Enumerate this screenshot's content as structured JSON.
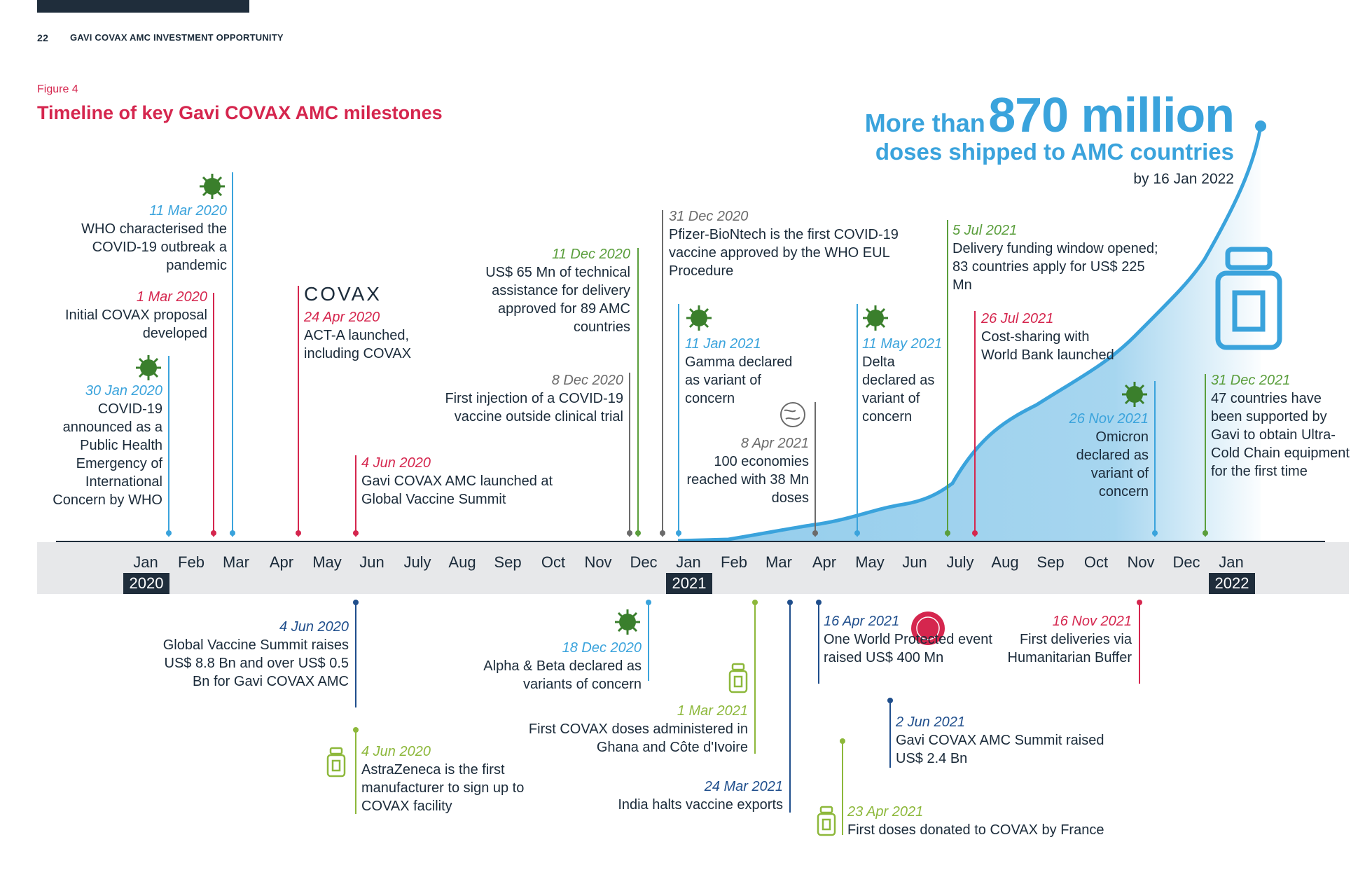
{
  "header": {
    "page_number": "22",
    "title": "GAVI COVAX AMC INVESTMENT OPPORTUNITY"
  },
  "figure": {
    "label": "Figure 4",
    "title": "Timeline of key Gavi COVAX AMC milestones"
  },
  "headline": {
    "prefix": "More than",
    "big": "870 million",
    "line2": "doses shipped to AMC countries",
    "line3": "by 16 Jan 2022"
  },
  "colors": {
    "red": "#d5264e",
    "blue": "#3aa3dc",
    "green": "#5a9e3c",
    "lightgreen": "#8db83b",
    "navy": "#1f4e8c",
    "grey": "#6b6b6b",
    "dark": "#1f2d3b"
  },
  "axis": {
    "months": [
      "Jan",
      "Feb",
      "Mar",
      "Apr",
      "May",
      "Jun",
      "July",
      "Aug",
      "Sep",
      "Oct",
      "Nov",
      "Dec",
      "Jan",
      "Feb",
      "Mar",
      "Apr",
      "May",
      "Jun",
      "July",
      "Aug",
      "Sep",
      "Oct",
      "Nov",
      "Dec",
      "Jan"
    ],
    "years": [
      "2020",
      "2021",
      "2022"
    ]
  },
  "logo_text": "COVAX",
  "badge_text": "ONE WORLD PROTECTED",
  "events_top": [
    {
      "date": "11 Mar 2020",
      "text": "WHO characterised the COVID-19 outbreak a pandemic"
    },
    {
      "date": "1 Mar 2020",
      "text": "Initial COVAX proposal developed"
    },
    {
      "date": "30 Jan 2020",
      "text": "COVID-19 announced as a Public Health Emergency of International Concern by WHO"
    },
    {
      "date": "24 Apr 2020",
      "text": "ACT-A launched, including COVAX"
    },
    {
      "date": "4 Jun 2020",
      "text": "Gavi COVAX AMC launched at Global Vaccine Summit"
    },
    {
      "date": "11 Dec 2020",
      "text": "US$ 65 Mn of technical assistance for delivery approved for 89 AMC countries"
    },
    {
      "date": "8 Dec 2020",
      "text": "First injection of a COVID-19 vaccine outside clinical trial"
    },
    {
      "date": "31 Dec 2020",
      "text": "Pfizer-BioNtech is the first COVID-19 vaccine approved by the WHO EUL Procedure"
    },
    {
      "date": "11 Jan 2021",
      "text": "Gamma declared as variant of concern"
    },
    {
      "date": "8 Apr 2021",
      "text": "100 economies reached with 38 Mn doses"
    },
    {
      "date": "11 May 2021",
      "text": "Delta declared as variant of concern"
    },
    {
      "date": "5 Jul 2021",
      "text": "Delivery funding window opened; 83 countries apply for US$ 225 Mn"
    },
    {
      "date": "26 Jul 2021",
      "text": "Cost-sharing with World Bank launched"
    },
    {
      "date": "26 Nov 2021",
      "text": "Omicron declared as variant of concern"
    },
    {
      "date": "31 Dec 2021",
      "text": "47 countries have been supported by Gavi to obtain Ultra-Cold Chain equipment for the first time"
    }
  ],
  "events_bottom": [
    {
      "date": "4 Jun 2020",
      "text": "Global Vaccine Summit raises US$ 8.8 Bn and over US$ 0.5 Bn for Gavi COVAX AMC"
    },
    {
      "date": "4 Jun 2020",
      "text": "AstraZeneca is the first manufacturer to sign up to COVAX facility"
    },
    {
      "date": "18 Dec 2020",
      "text": "Alpha & Beta declared as variants of concern"
    },
    {
      "date": "1 Mar 2021",
      "text": "First COVAX doses administered in Ghana and Côte d'Ivoire"
    },
    {
      "date": "24 Mar 2021",
      "text": "India halts vaccine exports"
    },
    {
      "date": "16 Apr 2021",
      "text": "One World Protected event raised US$ 400 Mn"
    },
    {
      "date": "2 Jun 2021",
      "text": "Gavi COVAX AMC Summit raised US$ 2.4 Bn"
    },
    {
      "date": "23 Apr 2021",
      "text": "First doses donated to COVAX by France"
    },
    {
      "date": "16 Nov 2021",
      "text": "First deliveries via Humanitarian Buffer"
    }
  ]
}
